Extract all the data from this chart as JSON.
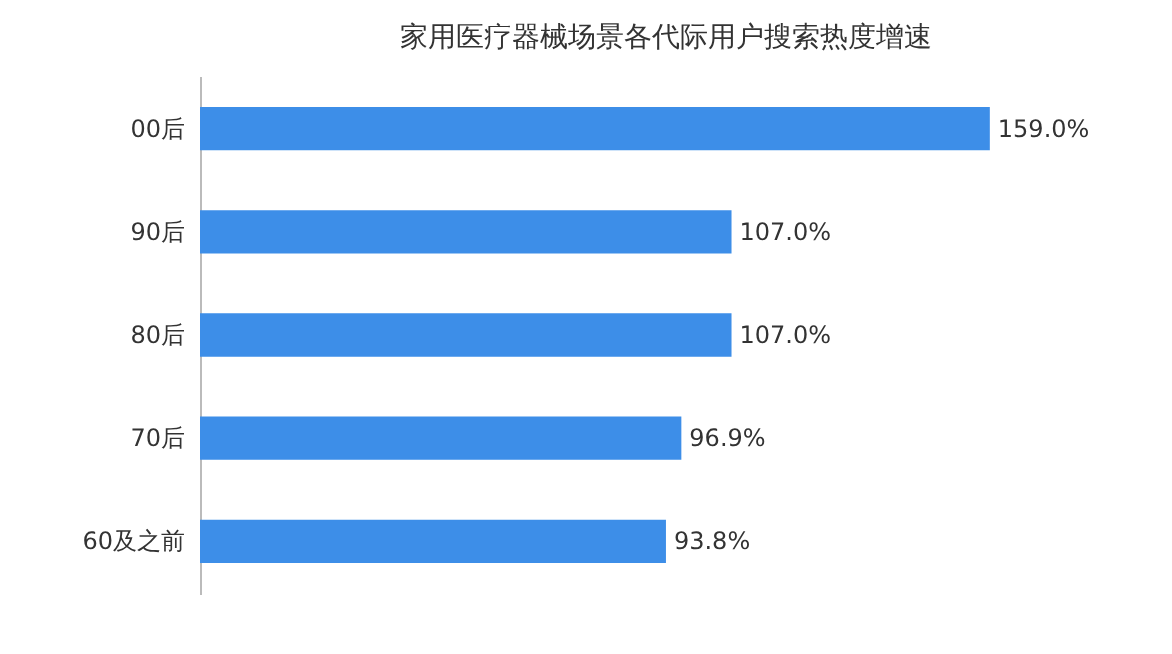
{
  "chart_data": {
    "type": "bar",
    "orientation": "horizontal",
    "title": "家用医疗器械场景各代际用户搜索热度增速",
    "categories": [
      "00后",
      "90后",
      "80后",
      "70后",
      "60及之前"
    ],
    "values": [
      159.0,
      107.0,
      107.0,
      96.9,
      93.8
    ],
    "value_labels": [
      "159.0%",
      "107.0%",
      "107.0%",
      "96.9%",
      "93.8%"
    ],
    "color": "#3d8ee8"
  }
}
